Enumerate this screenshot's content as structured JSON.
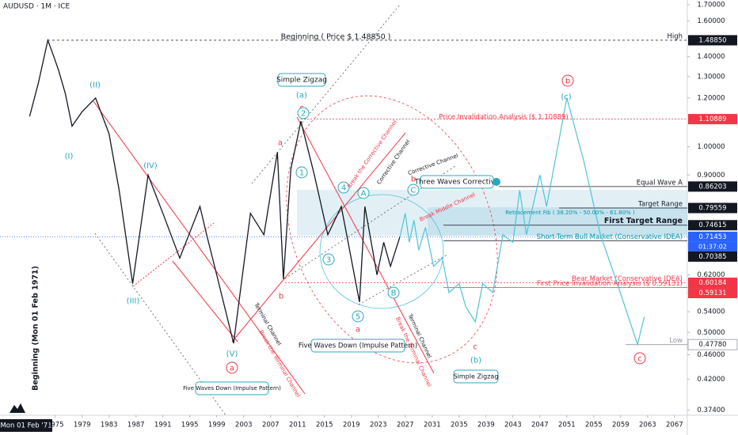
{
  "chart_data": {
    "type": "line",
    "title": "AUDUSD · 1M · ICE",
    "log_y": true,
    "xlim": [
      1966.8,
      2068.9
    ],
    "ylim": [
      0.367,
      1.73
    ],
    "xticks": [
      1975,
      1979,
      1983,
      1987,
      1991,
      1995,
      1999,
      2003,
      2007,
      2011,
      2015,
      2019,
      2023,
      2027,
      2031,
      2035,
      2039,
      2043,
      2047,
      2051,
      2055,
      2059,
      2063,
      2067
    ],
    "yticks": [
      {
        "value": 1.7,
        "label": "1.70000"
      },
      {
        "value": 1.6,
        "label": "1.60000"
      },
      {
        "value": 1.4,
        "label": "1.40000"
      },
      {
        "value": 1.3,
        "label": "1.30000"
      },
      {
        "value": 1.2,
        "label": "1.20000"
      },
      {
        "value": 1.0,
        "label": "1.00000"
      },
      {
        "value": 0.9,
        "label": "0.90000"
      },
      {
        "value": 0.62,
        "label": "0.62000"
      },
      {
        "value": 0.58,
        "label": "0.58000"
      },
      {
        "value": 0.54,
        "label": "0.54000"
      },
      {
        "value": 0.5,
        "label": "0.50000"
      },
      {
        "value": 0.46,
        "label": "0.46000"
      },
      {
        "value": 0.42,
        "label": "0.42000"
      },
      {
        "value": 0.374,
        "label": "0.37400"
      }
    ],
    "x_cursor_label": "Mon 01 Feb '71",
    "countdown": "01:37:02",
    "series": [
      {
        "color": "#131722",
        "x": [
          1971.2,
          1972.5,
          1973.9,
          1974.8,
          1975.5,
          1976.5,
          1977.5,
          1979.0,
          1981.0,
          1983.0,
          1984.5,
          1986.5,
          1988.8,
          1991.0,
          1993.5,
          1996.5,
          1997.5,
          1999.0,
          2001.5,
          2004.0,
          2006.0,
          2008.0,
          2008.9,
          2010.0,
          2011.5,
          2013.5,
          2015.5,
          2017.5,
          2020.2,
          2021.0,
          2022.8,
          2023.8,
          2024.8,
          2026.2
        ],
        "values": [
          1.12,
          1.27,
          1.4885,
          1.4,
          1.33,
          1.22,
          1.08,
          1.14,
          1.2,
          1.05,
          0.85,
          0.6,
          0.9,
          0.78,
          0.66,
          0.8,
          0.72,
          0.62,
          0.48,
          0.78,
          0.72,
          0.98,
          0.61,
          0.92,
          1.1,
          0.9,
          0.72,
          0.8,
          0.56,
          0.8,
          0.62,
          0.7,
          0.64,
          0.71453
        ]
      },
      {
        "color": "#4fc3d9",
        "x": [
          2026.2,
          2027.0,
          2027.6,
          2028.3,
          2029.0,
          2030.0,
          2031.2,
          2032.5,
          2033.5,
          2035.0,
          2036.0,
          2037.4,
          2038.5,
          2040.0,
          2041.5,
          2043.0,
          2044.0,
          2045.0,
          2047.0,
          2048.0,
          2049.5,
          2051.0,
          2053.5,
          2056.0,
          2058.5,
          2061.5,
          2062.5
        ],
        "values": [
          0.71453,
          0.78,
          0.7,
          0.76,
          0.68,
          0.74,
          0.64,
          0.66,
          0.58,
          0.6,
          0.55,
          0.52,
          0.6,
          0.58,
          0.72,
          0.7,
          0.85,
          0.72,
          0.9,
          0.8,
          0.98,
          1.2,
          0.95,
          0.72,
          0.6,
          0.478,
          0.53
        ]
      }
    ],
    "levels": [
      {
        "name": "High",
        "value": 1.4885,
        "label": "1.48850",
        "color": "#131722"
      },
      {
        "value": 1.10889,
        "label": "1.10889",
        "color": "#f23645"
      },
      {
        "name": "Equal Wave A",
        "value": 0.86203,
        "label": "0.86203",
        "color": "#131722"
      },
      {
        "name": "Target Range",
        "value": 0.79559,
        "label": "0.79559",
        "color": "#131722"
      },
      {
        "name": "First Target Range",
        "value": 0.74615,
        "label": "0.74615",
        "color": "#131722"
      },
      {
        "value": 0.71453,
        "label": "0.71453",
        "color": "#2962ff"
      },
      {
        "name": "Short-Term Bull Market (Conservative IDEA)",
        "value": 0.70385,
        "label": "0.70385",
        "color": "#131722",
        "name_color": "#0097a7"
      },
      {
        "name": "Bear Market (Conservative IDEA)",
        "value": 0.60184,
        "label": "0.60184",
        "color": "#f23645"
      },
      {
        "name": "First Price Invalidation Analysis ($ 0.59131)",
        "value": 0.59131,
        "label": "0.59131",
        "color": "#f23645"
      },
      {
        "name": "Low",
        "value": 0.4778,
        "label": "0.47780",
        "color": "#ffffff"
      }
    ],
    "annotations": [
      "Beginning ( Price $ 1.48850 )",
      "Price Invalidation Analysis ($ 1.10889)",
      "Retracement Fib ( 38.20% - 50.00% - 61.80% )",
      "Beginning (Mon 01 Feb 1971)"
    ],
    "wave_labels": [
      "(I)",
      "(II)",
      "(III)",
      "(IV)",
      "(V)",
      "a",
      "a",
      "b",
      "c",
      "(a)",
      "2",
      "1",
      "3",
      "4",
      "5",
      "a",
      "A",
      "B",
      "C",
      "b",
      "c",
      "(b)",
      "(c)",
      "b",
      "c"
    ],
    "callouts": [
      "Simple Zigzag",
      "Three Waves Corrective",
      "Five Waves Down (Impulse Pattern)",
      "Five Waves Down (Impulse Pattern)",
      "Simple Zigzag"
    ],
    "channel_labels": [
      "Break the Corrective Channel",
      "Corrective Channel",
      "Corrective Channel",
      "Break Middle Channel",
      "Terminal Channel",
      "Break the Terminal Channel",
      "Terminal Channel",
      "Break the Terminal Channel"
    ]
  }
}
